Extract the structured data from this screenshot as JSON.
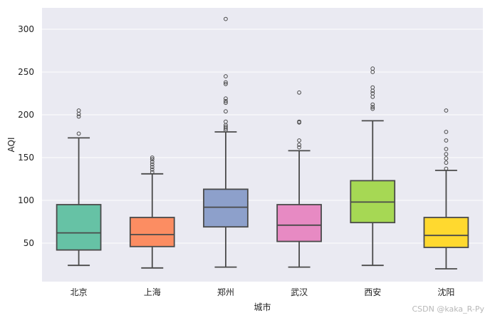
{
  "chart_data": {
    "type": "box",
    "xlabel": "城市",
    "ylabel": "AQI",
    "ylim": [
      5,
      325
    ],
    "yticks": [
      50,
      100,
      150,
      200,
      250,
      300
    ],
    "grid": true,
    "background": "#eaeaf2",
    "categories": [
      "北京",
      "上海",
      "郑州",
      "武汉",
      "西安",
      "沈阳"
    ],
    "boxes": [
      {
        "category": "北京",
        "color": "#66c2a5",
        "whisker_low": 24,
        "q1": 42,
        "median": 62,
        "q3": 95,
        "whisker_high": 173,
        "outliers": [
          178,
          198,
          201,
          205
        ]
      },
      {
        "category": "上海",
        "color": "#fc8d62",
        "whisker_low": 21,
        "q1": 46,
        "median": 60,
        "q3": 80,
        "whisker_high": 131,
        "outliers": [
          133,
          136,
          139,
          142,
          145,
          148,
          150
        ]
      },
      {
        "category": "郑州",
        "color": "#8da0cb",
        "whisker_low": 22,
        "q1": 69,
        "median": 92,
        "q3": 113,
        "whisker_high": 180,
        "outliers": [
          182,
          184,
          186,
          188,
          192,
          204,
          214,
          216,
          219,
          236,
          238,
          245,
          312
        ]
      },
      {
        "category": "武汉",
        "color": "#e78ac3",
        "whisker_low": 22,
        "q1": 52,
        "median": 71,
        "q3": 95,
        "whisker_high": 158,
        "outliers": [
          162,
          165,
          170,
          191,
          192,
          226
        ]
      },
      {
        "category": "西安",
        "color": "#a6d854",
        "whisker_low": 24,
        "q1": 74,
        "median": 98,
        "q3": 123,
        "whisker_high": 193,
        "outliers": [
          207,
          209,
          212,
          221,
          225,
          228,
          232,
          250,
          254
        ]
      },
      {
        "category": "沈阳",
        "color": "#ffd92f",
        "whisker_low": 20,
        "q1": 45,
        "median": 59,
        "q3": 80,
        "whisker_high": 135,
        "outliers": [
          137,
          144,
          149,
          154,
          160,
          170,
          180,
          205
        ]
      }
    ]
  },
  "watermark": "CSDN @kaka_R-Py"
}
